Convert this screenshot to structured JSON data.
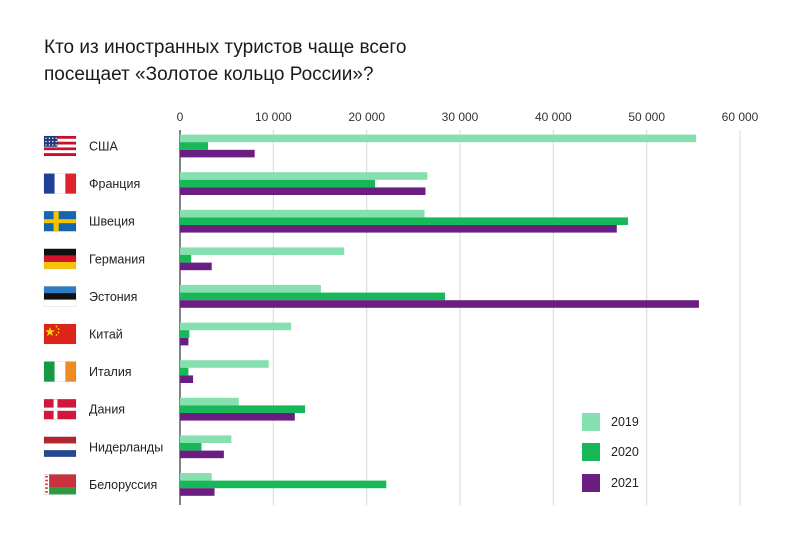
{
  "title": {
    "line1": "Кто из иностранных туристов чаще всего",
    "line2": "посещает «Золотое кольцо России»?"
  },
  "colors": {
    "2019": "#86dfae",
    "2020": "#16b858",
    "2021": "#6a1e82",
    "grid": "#d9d9d9",
    "axis": "#333333"
  },
  "chart_data": {
    "type": "bar",
    "orientation": "horizontal",
    "title": "Кто из иностранных туристов чаще всего посещает «Золотое кольцо России»?",
    "xlim": [
      0,
      60000
    ],
    "ticks": [
      {
        "value": 0,
        "label": "0"
      },
      {
        "value": 10000,
        "label": "10 000"
      },
      {
        "value": 20000,
        "label": "20 000"
      },
      {
        "value": 30000,
        "label": "30 000"
      },
      {
        "value": 40000,
        "label": "40 000"
      },
      {
        "value": 50000,
        "label": "50 000"
      },
      {
        "value": 60000,
        "label": "60 000"
      }
    ],
    "grid": true,
    "legend_position": "bottom-right",
    "categories": [
      {
        "label": "США",
        "flag": "us-flag-icon"
      },
      {
        "label": "Франция",
        "flag": "france-flag-icon"
      },
      {
        "label": "Швеция",
        "flag": "sweden-flag-icon"
      },
      {
        "label": "Германия",
        "flag": "germany-flag-icon"
      },
      {
        "label": "Эстония",
        "flag": "estonia-flag-icon"
      },
      {
        "label": "Китай",
        "flag": "china-flag-icon"
      },
      {
        "label": "Италия",
        "flag": "italy-flag-icon"
      },
      {
        "label": "Дания",
        "flag": "denmark-flag-icon"
      },
      {
        "label": "Нидерланды",
        "flag": "netherlands-flag-icon"
      },
      {
        "label": "Белоруссия",
        "flag": "belarus-flag-icon"
      }
    ],
    "series": [
      {
        "name": "2019",
        "values": [
          55300,
          26500,
          26200,
          17600,
          15100,
          11900,
          9500,
          6300,
          5500,
          3400
        ]
      },
      {
        "name": "2020",
        "values": [
          3000,
          20900,
          48000,
          1200,
          28400,
          1000,
          900,
          13400,
          2300,
          22100
        ]
      },
      {
        "name": "2021",
        "values": [
          8000,
          26300,
          46800,
          3400,
          55600,
          900,
          1400,
          12300,
          4700,
          3700
        ]
      }
    ]
  }
}
